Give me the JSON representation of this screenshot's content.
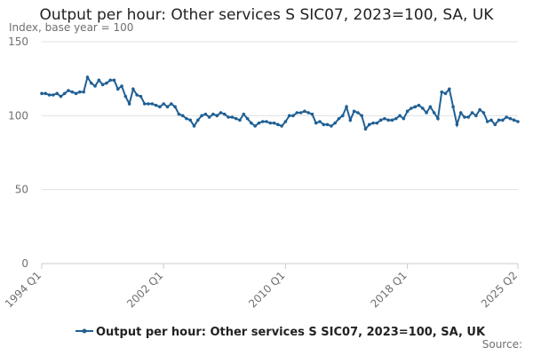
{
  "chart_data": {
    "type": "line",
    "title": "Output per hour: Other services S SIC07, 2023=100, SA, UK",
    "ylabel": "Index, base year = 100",
    "source": "Source:",
    "categories": [
      "1994 Q1",
      null,
      null,
      null,
      null,
      null,
      null,
      null,
      null,
      null,
      null,
      null,
      null,
      null,
      null,
      null,
      null,
      null,
      null,
      null,
      null,
      null,
      null,
      null,
      null,
      null,
      null,
      null,
      null,
      null,
      null,
      null,
      "2002 Q1",
      null,
      null,
      null,
      null,
      null,
      null,
      null,
      null,
      null,
      null,
      null,
      null,
      null,
      null,
      null,
      null,
      null,
      null,
      null,
      null,
      null,
      null,
      null,
      null,
      null,
      null,
      null,
      null,
      null,
      null,
      null,
      "2010 Q1",
      null,
      null,
      null,
      null,
      null,
      null,
      null,
      null,
      null,
      null,
      null,
      null,
      null,
      null,
      null,
      null,
      null,
      null,
      null,
      null,
      null,
      null,
      null,
      null,
      null,
      null,
      null,
      null,
      null,
      null,
      null,
      "2018 Q1",
      null,
      null,
      null,
      null,
      null,
      null,
      null,
      null,
      null,
      null,
      null,
      null,
      null,
      null,
      null,
      null,
      null,
      null,
      null,
      null,
      null,
      null,
      null,
      null,
      null,
      null,
      null,
      null,
      "2025 Q2"
    ],
    "series": [
      {
        "name": "Output per hour: Other services S SIC07, 2023=100, SA, UK",
        "color": "#206095",
        "values": [
          115,
          115,
          114,
          114,
          115,
          113,
          115,
          117,
          116,
          115,
          116,
          116,
          126,
          122,
          120,
          124,
          121,
          122,
          124,
          124,
          118,
          120,
          113,
          108,
          118,
          114,
          113,
          108,
          108,
          108,
          107,
          106,
          108,
          106,
          108,
          106,
          101,
          100,
          98,
          97,
          93,
          97,
          100,
          101,
          99,
          101,
          100,
          102,
          101,
          99,
          99,
          98,
          97,
          101,
          98,
          95,
          93,
          95,
          96,
          96,
          95,
          95,
          94,
          93,
          96,
          100,
          100,
          102,
          102,
          103,
          102,
          101,
          95,
          96,
          94,
          94,
          93,
          95,
          98,
          100,
          106,
          97,
          103,
          102,
          100,
          91,
          94,
          95,
          95,
          97,
          98,
          97,
          97,
          98,
          100,
          98,
          103,
          105,
          106,
          107,
          105,
          102,
          106,
          102,
          98,
          116,
          115,
          118,
          106,
          94,
          102,
          99,
          99,
          102,
          100,
          104,
          102,
          96,
          97,
          94,
          97,
          97,
          99,
          98,
          97,
          96
        ]
      }
    ],
    "ylim": [
      0,
      150
    ],
    "yticks": [
      0,
      50,
      100,
      150
    ],
    "grid": true
  }
}
